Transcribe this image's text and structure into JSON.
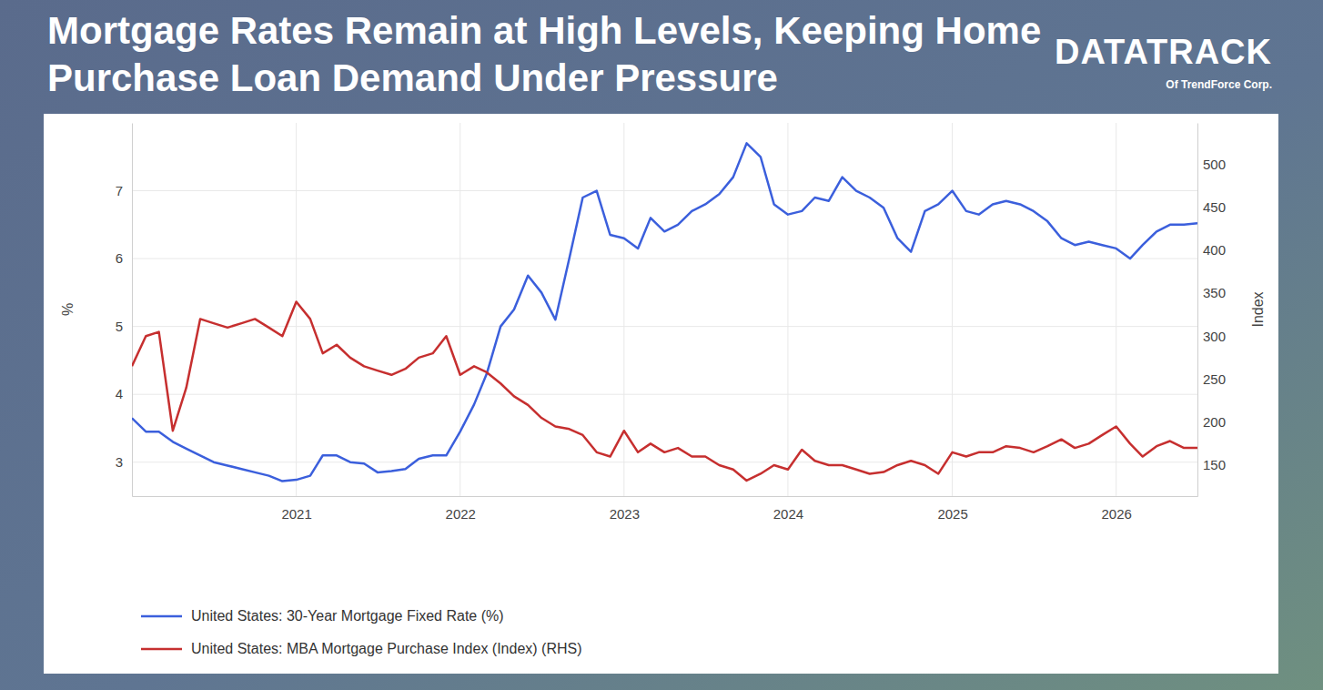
{
  "chart_data": {
    "type": "line",
    "title": "Mortgage Rates Remain at High Levels, Keeping Home Purchase Loan Demand Under Pressure",
    "annotations": [
      "DATATRACK",
      "Of TrendForce Corp."
    ],
    "y_label": "%",
    "y2_label": "Index",
    "x": [
      "2020-01",
      "2020-02",
      "2020-03",
      "2020-04",
      "2020-05",
      "2020-06",
      "2020-07",
      "2020-08",
      "2020-09",
      "2020-10",
      "2020-11",
      "2020-12",
      "2021-01",
      "2021-02",
      "2021-03",
      "2021-04",
      "2021-05",
      "2021-06",
      "2021-07",
      "2021-08",
      "2021-09",
      "2021-10",
      "2021-11",
      "2021-12",
      "2022-01",
      "2022-02",
      "2022-03",
      "2022-04",
      "2022-05",
      "2022-06",
      "2022-07",
      "2022-08",
      "2022-09",
      "2022-10",
      "2022-11",
      "2022-12",
      "2023-01",
      "2023-02",
      "2023-03",
      "2023-04",
      "2023-05",
      "2023-06",
      "2023-07",
      "2023-08",
      "2023-09",
      "2023-10",
      "2023-11",
      "2023-12",
      "2024-01",
      "2024-02",
      "2024-03",
      "2024-04",
      "2024-05",
      "2024-06",
      "2024-07",
      "2024-08",
      "2024-09",
      "2024-10",
      "2024-11",
      "2024-12",
      "2025-01",
      "2025-02",
      "2025-03",
      "2025-04",
      "2025-05",
      "2025-06",
      "2025-07",
      "2025-08",
      "2025-09",
      "2025-10",
      "2025-11",
      "2025-12",
      "2026-01",
      "2026-02",
      "2026-03",
      "2026-04",
      "2026-05",
      "2026-06",
      "2026-07"
    ],
    "xlim": [
      "2020-01",
      "2026-07"
    ],
    "xticks": [
      {
        "value": "2021-01",
        "label": "2021"
      },
      {
        "value": "2022-01",
        "label": "2022"
      },
      {
        "value": "2023-01",
        "label": "2023"
      },
      {
        "value": "2024-01",
        "label": "2024"
      },
      {
        "value": "2025-01",
        "label": "2025"
      },
      {
        "value": "2026-01",
        "label": "2026"
      }
    ],
    "ylim": [
      2.5,
      8
    ],
    "yticks": [
      3,
      4,
      5,
      6,
      7
    ],
    "y2lim": [
      114,
      548
    ],
    "y2ticks": [
      150,
      200,
      250,
      300,
      350,
      400,
      450,
      500
    ],
    "grid": true,
    "legend": "bottom",
    "series": [
      {
        "name": "United States: 30-Year Mortgage Fixed Rate (%)",
        "color": "#3b5fdc",
        "axis": "y",
        "values": [
          3.65,
          3.45,
          3.45,
          3.3,
          3.2,
          3.1,
          3.0,
          2.95,
          2.9,
          2.85,
          2.8,
          2.72,
          2.74,
          2.8,
          3.1,
          3.1,
          3.0,
          2.98,
          2.85,
          2.87,
          2.9,
          3.05,
          3.1,
          3.1,
          3.45,
          3.85,
          4.3,
          5.0,
          5.25,
          5.75,
          5.5,
          5.1,
          6.0,
          6.9,
          7.0,
          6.35,
          6.3,
          6.15,
          6.6,
          6.4,
          6.5,
          6.7,
          6.8,
          6.95,
          7.2,
          7.7,
          7.5,
          6.8,
          6.65,
          6.7,
          6.9,
          6.85,
          7.2,
          7.0,
          6.9,
          6.75,
          6.3,
          6.1,
          6.7,
          6.8,
          7.0,
          6.7,
          6.65,
          6.8,
          6.85,
          6.8,
          6.7,
          6.55,
          6.3,
          6.2,
          6.25,
          6.2,
          6.15,
          6.0,
          6.2,
          6.4,
          6.5,
          6.5,
          6.52
        ]
      },
      {
        "name": "United States: MBA Mortgage Purchase Index (Index) (RHS)",
        "color": "#c62f2f",
        "axis": "y2",
        "values": [
          265,
          300,
          305,
          190,
          240,
          320,
          315,
          310,
          315,
          320,
          310,
          300,
          340,
          320,
          280,
          290,
          275,
          265,
          260,
          255,
          262,
          275,
          280,
          300,
          255,
          265,
          258,
          245,
          230,
          220,
          205,
          195,
          192,
          185,
          165,
          160,
          190,
          165,
          175,
          165,
          170,
          160,
          160,
          150,
          145,
          132,
          140,
          150,
          145,
          168,
          155,
          150,
          150,
          145,
          140,
          142,
          150,
          155,
          150,
          140,
          165,
          160,
          165,
          165,
          172,
          170,
          165,
          172,
          180,
          170,
          175,
          185,
          195,
          175,
          160,
          172,
          178,
          170,
          170
        ]
      }
    ]
  }
}
